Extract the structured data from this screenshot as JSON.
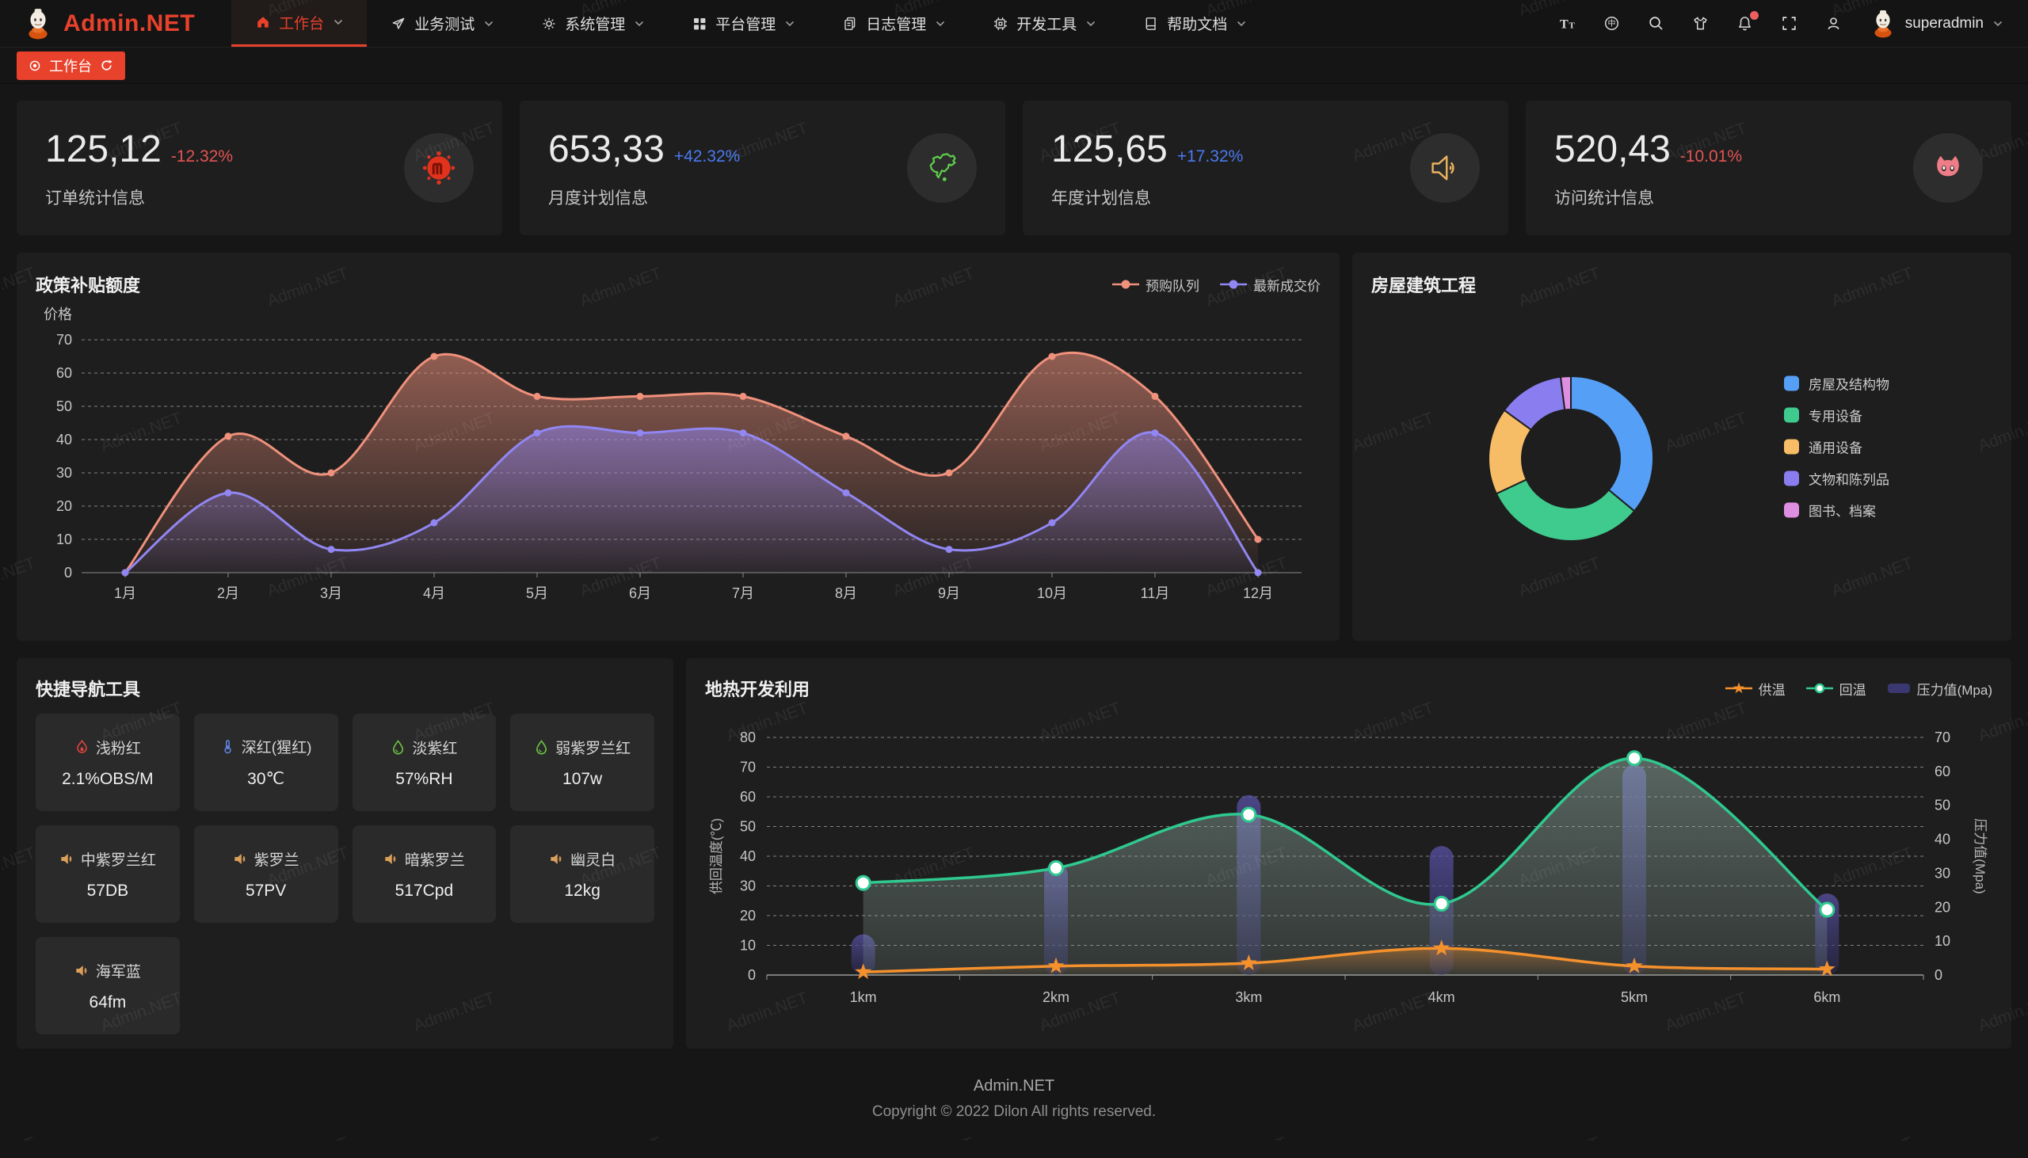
{
  "app": {
    "logo_text": "Admin.NET",
    "watermark": "Admin.NET"
  },
  "navbar": {
    "menu": [
      {
        "label": "工作台",
        "icon": "home-icon",
        "active": true
      },
      {
        "label": "业务测试",
        "icon": "send-icon",
        "active": false
      },
      {
        "label": "系统管理",
        "icon": "gear-icon",
        "active": false
      },
      {
        "label": "平台管理",
        "icon": "grid-icon",
        "active": false
      },
      {
        "label": "日志管理",
        "icon": "log-icon",
        "active": false
      },
      {
        "label": "开发工具",
        "icon": "cpu-icon",
        "active": false
      },
      {
        "label": "帮助文档",
        "icon": "book-icon",
        "active": false
      }
    ],
    "actions": [
      {
        "icon": "font-size-icon",
        "badge": false
      },
      {
        "icon": "language-icon",
        "badge": false
      },
      {
        "icon": "search-icon",
        "badge": false
      },
      {
        "icon": "theme-shirt-icon",
        "badge": false
      },
      {
        "icon": "bell-icon",
        "badge": true
      },
      {
        "icon": "fullscreen-icon",
        "badge": false
      },
      {
        "icon": "person-icon",
        "badge": false
      }
    ],
    "username": "superadmin"
  },
  "tabbar": {
    "active_tab": "工作台"
  },
  "stats": [
    {
      "value": "125,12",
      "delta": "-12.32%",
      "trend": "down",
      "label": "订单统计信息",
      "icon": "meetup-icon",
      "icon_color": "#e1321c"
    },
    {
      "value": "653,33",
      "delta": "+42.32%",
      "trend": "up",
      "label": "月度计划信息",
      "icon": "china-map-icon",
      "icon_color": "#5ecf4a"
    },
    {
      "value": "125,65",
      "delta": "+17.32%",
      "trend": "up",
      "label": "年度计划信息",
      "icon": "speaker-icon",
      "icon_color": "#edb25e"
    },
    {
      "value": "520,43",
      "delta": "-10.01%",
      "trend": "down",
      "label": "访问统计信息",
      "icon": "cat-icon",
      "icon_color": "#ef7d87"
    }
  ],
  "quick_nav": {
    "title": "快捷导航工具",
    "items": [
      {
        "name": "浅粉红",
        "value": "2.1%OBS/M",
        "icon": "fire-icon",
        "icon_color": "#d9433c"
      },
      {
        "name": "深红(猩红)",
        "value": "30℃",
        "icon": "thermometer-icon",
        "icon_color": "#5e84e0"
      },
      {
        "name": "淡紫红",
        "value": "57%RH",
        "icon": "drop-icon",
        "icon_color": "#6abf40"
      },
      {
        "name": "弱紫罗兰红",
        "value": "107w",
        "icon": "drop-icon",
        "icon_color": "#6abf40"
      },
      {
        "name": "中紫罗兰红",
        "value": "57DB",
        "icon": "speaker-icon",
        "icon_color": "#d9a05b"
      },
      {
        "name": "紫罗兰",
        "value": "57PV",
        "icon": "speaker-icon",
        "icon_color": "#d9a05b"
      },
      {
        "name": "暗紫罗兰",
        "value": "517Cpd",
        "icon": "speaker-icon",
        "icon_color": "#d9a05b"
      },
      {
        "name": "幽灵白",
        "value": "12kg",
        "icon": "speaker-icon",
        "icon_color": "#d9a05b"
      },
      {
        "name": "海军蓝",
        "value": "64fm",
        "icon": "speaker-icon",
        "icon_color": "#d9a05b"
      }
    ]
  },
  "chart_data": [
    {
      "id": "subsidy",
      "type": "area",
      "title": "政策补贴额度",
      "ylabel": "价格",
      "ylim": [
        0,
        70
      ],
      "grid": true,
      "legend_position": "top-right",
      "categories": [
        "1月",
        "2月",
        "3月",
        "4月",
        "5月",
        "6月",
        "7月",
        "8月",
        "9月",
        "10月",
        "11月",
        "12月"
      ],
      "series": [
        {
          "name": "预购队列",
          "color": "#f0917c",
          "marker": "dot",
          "values": [
            0,
            41,
            30,
            65,
            53,
            53,
            53,
            41,
            30,
            65,
            53,
            10
          ]
        },
        {
          "name": "最新成交价",
          "color": "#9186f2",
          "marker": "dot",
          "values": [
            0,
            24,
            7,
            15,
            42,
            42,
            42,
            24,
            7,
            15,
            42,
            0
          ]
        }
      ]
    },
    {
      "id": "building",
      "type": "pie",
      "title": "房屋建筑工程",
      "donut": true,
      "legend_position": "right",
      "slices": [
        {
          "label": "房屋及结构物",
          "value": 36,
          "color": "#55a0f6"
        },
        {
          "label": "专用设备",
          "value": 32,
          "color": "#3fcb8e"
        },
        {
          "label": "通用设备",
          "value": 17,
          "color": "#f6bd66"
        },
        {
          "label": "文物和陈列品",
          "value": 13,
          "color": "#8a7df0"
        },
        {
          "label": "图书、档案",
          "value": 2,
          "color": "#de8fe2"
        }
      ]
    },
    {
      "id": "geothermal",
      "type": "line",
      "title": "地热开发利用",
      "ylabel_left": "供回温度(℃)",
      "ylabel_right": "压力值(Mpa)",
      "ylim_left": [
        0,
        80
      ],
      "ylim_right": [
        0,
        70
      ],
      "grid": true,
      "legend_position": "top-right",
      "categories": [
        "1km",
        "2km",
        "3km",
        "4km",
        "5km",
        "6km"
      ],
      "series": [
        {
          "name": "供温",
          "kind": "line",
          "axis": "left",
          "color": "#f5912d",
          "marker": "star",
          "values": [
            1,
            3,
            4,
            9,
            3,
            2
          ]
        },
        {
          "name": "回温",
          "kind": "line",
          "axis": "left",
          "color": "#2fc98f",
          "marker": "circle",
          "values": [
            31,
            36,
            54,
            24,
            73,
            22
          ]
        },
        {
          "name": "压力值(Mpa)",
          "kind": "bar",
          "axis": "right",
          "color": "#3b3770",
          "marker": "rect",
          "values": [
            12,
            33,
            53,
            38,
            62,
            24
          ]
        }
      ]
    }
  ],
  "footer": {
    "line1": "Admin.NET",
    "line2": "Copyright © 2022 Dilon All rights reserved."
  },
  "colors": {
    "accent": "#e8422c",
    "up": "#4a7af0",
    "down": "#e45454",
    "card_bg": "#1e1e1e",
    "page_bg": "#161616"
  }
}
